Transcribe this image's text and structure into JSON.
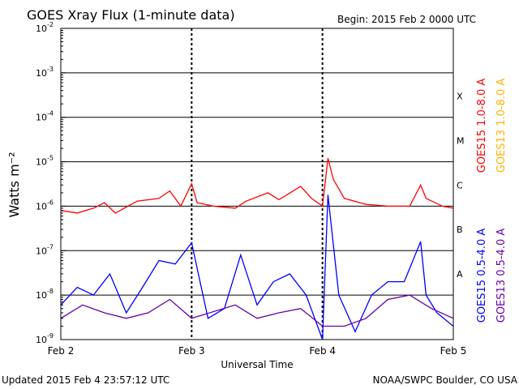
{
  "header": {
    "title": "GOES Xray Flux (1-minute data)",
    "begin": "Begin:  2015 Feb 2 0000 UTC"
  },
  "footer": {
    "updated": "Updated 2015 Feb  4 23:57:12 UTC",
    "credit": "NOAA/SWPC Boulder, CO USA"
  },
  "chart_data": {
    "type": "line",
    "title": "GOES Xray Flux (1-minute data)",
    "xlabel": "Universal Time",
    "ylabel": "Watts m⁻²",
    "yscale": "log",
    "ylim": [
      1e-09,
      0.01
    ],
    "xlim": [
      "2015-02-02T00:00",
      "2015-02-05T00:00"
    ],
    "x_ticks": [
      "Feb 2",
      "Feb 3",
      "Feb 4",
      "Feb 5"
    ],
    "y_ticks": [
      {
        "value": 1e-09,
        "base": "10",
        "exp": "-9"
      },
      {
        "value": 1e-08,
        "base": "10",
        "exp": "-8"
      },
      {
        "value": 1e-07,
        "base": "10",
        "exp": "-7"
      },
      {
        "value": 1e-06,
        "base": "10",
        "exp": "-6"
      },
      {
        "value": 1e-05,
        "base": "10",
        "exp": "-5"
      },
      {
        "value": 0.0001,
        "base": "10",
        "exp": "-4"
      },
      {
        "value": 0.001,
        "base": "10",
        "exp": "-3"
      },
      {
        "value": 0.01,
        "base": "10",
        "exp": "-2"
      }
    ],
    "flare_classes": [
      {
        "label": "A",
        "value": 3e-08
      },
      {
        "label": "B",
        "value": 3e-07
      },
      {
        "label": "C",
        "value": 3e-06
      },
      {
        "label": "M",
        "value": 3e-05
      },
      {
        "label": "X",
        "value": 0.0003
      }
    ],
    "grid": true,
    "legend_position": "right, vertical",
    "series": [
      {
        "name": "GOES15 1.0-8.0 A",
        "color": "#ff0000",
        "x": [
          "2015-02-02T00:00",
          "2015-02-02T03:00",
          "2015-02-02T06:00",
          "2015-02-02T08:00",
          "2015-02-02T10:00",
          "2015-02-02T14:00",
          "2015-02-02T18:00",
          "2015-02-02T20:00",
          "2015-02-02T22:00",
          "2015-02-03T00:00",
          "2015-02-03T01:00",
          "2015-02-03T04:00",
          "2015-02-03T08:00",
          "2015-02-03T10:00",
          "2015-02-03T14:00",
          "2015-02-03T16:00",
          "2015-02-03T20:00",
          "2015-02-03T22:00",
          "2015-02-04T00:00",
          "2015-02-04T01:00",
          "2015-02-04T02:00",
          "2015-02-04T04:00",
          "2015-02-04T08:00",
          "2015-02-04T12:00",
          "2015-02-04T16:00",
          "2015-02-04T18:00",
          "2015-02-04T19:00",
          "2015-02-04T22:00",
          "2015-02-05T00:00"
        ],
        "values": [
          8e-07,
          7e-07,
          9e-07,
          1.2e-06,
          7e-07,
          1.3e-06,
          1.5e-06,
          2.2e-06,
          1e-06,
          3.2e-06,
          1.2e-06,
          1e-06,
          9e-07,
          1.3e-06,
          2e-06,
          1.4e-06,
          2.8e-06,
          1.5e-06,
          1e-06,
          1.2e-05,
          4e-06,
          1.5e-06,
          1.1e-06,
          1e-06,
          1e-06,
          3e-06,
          1.5e-06,
          1e-06,
          9e-07
        ]
      },
      {
        "name": "GOES13 1.0-8.0 A",
        "color": "#ffb300",
        "x": [],
        "values": []
      },
      {
        "name": "GOES15 0.5-4.0 A",
        "color": "#0000ff",
        "x": [
          "2015-02-02T00:00",
          "2015-02-02T03:00",
          "2015-02-02T06:00",
          "2015-02-02T09:00",
          "2015-02-02T12:00",
          "2015-02-02T15:00",
          "2015-02-02T18:00",
          "2015-02-02T21:00",
          "2015-02-03T00:00",
          "2015-02-03T03:00",
          "2015-02-03T06:00",
          "2015-02-03T09:00",
          "2015-02-03T12:00",
          "2015-02-03T15:00",
          "2015-02-03T18:00",
          "2015-02-03T21:00",
          "2015-02-04T00:00",
          "2015-02-04T01:00",
          "2015-02-04T03:00",
          "2015-02-04T06:00",
          "2015-02-04T09:00",
          "2015-02-04T12:00",
          "2015-02-04T15:00",
          "2015-02-04T18:00",
          "2015-02-04T19:00",
          "2015-02-04T21:00",
          "2015-02-05T00:00"
        ],
        "values": [
          6e-09,
          1.5e-08,
          1e-08,
          3e-08,
          4e-09,
          1.5e-08,
          6e-08,
          5e-08,
          1.5e-07,
          3e-09,
          5e-09,
          8e-08,
          6e-09,
          2e-08,
          3e-08,
          1e-08,
          1e-09,
          1.8e-06,
          1e-08,
          1.5e-09,
          1e-08,
          2e-08,
          2e-08,
          1.6e-07,
          1e-08,
          4e-09,
          2e-09
        ]
      },
      {
        "name": "GOES13 0.5-4.0 A",
        "color": "#6600aa",
        "x": [
          "2015-02-02T00:00",
          "2015-02-02T04:00",
          "2015-02-02T08:00",
          "2015-02-02T12:00",
          "2015-02-02T16:00",
          "2015-02-02T20:00",
          "2015-02-03T00:00",
          "2015-02-03T08:00",
          "2015-02-03T12:00",
          "2015-02-03T16:00",
          "2015-02-03T20:00",
          "2015-02-04T00:00",
          "2015-02-04T04:00",
          "2015-02-04T08:00",
          "2015-02-04T12:00",
          "2015-02-04T16:00",
          "2015-02-04T20:00",
          "2015-02-05T00:00"
        ],
        "values": [
          3e-09,
          6e-09,
          4e-09,
          3e-09,
          4e-09,
          8e-09,
          3e-09,
          6e-09,
          3e-09,
          4e-09,
          5e-09,
          2e-09,
          2e-09,
          3e-09,
          8e-09,
          1e-08,
          5e-09,
          3e-09
        ]
      }
    ]
  }
}
